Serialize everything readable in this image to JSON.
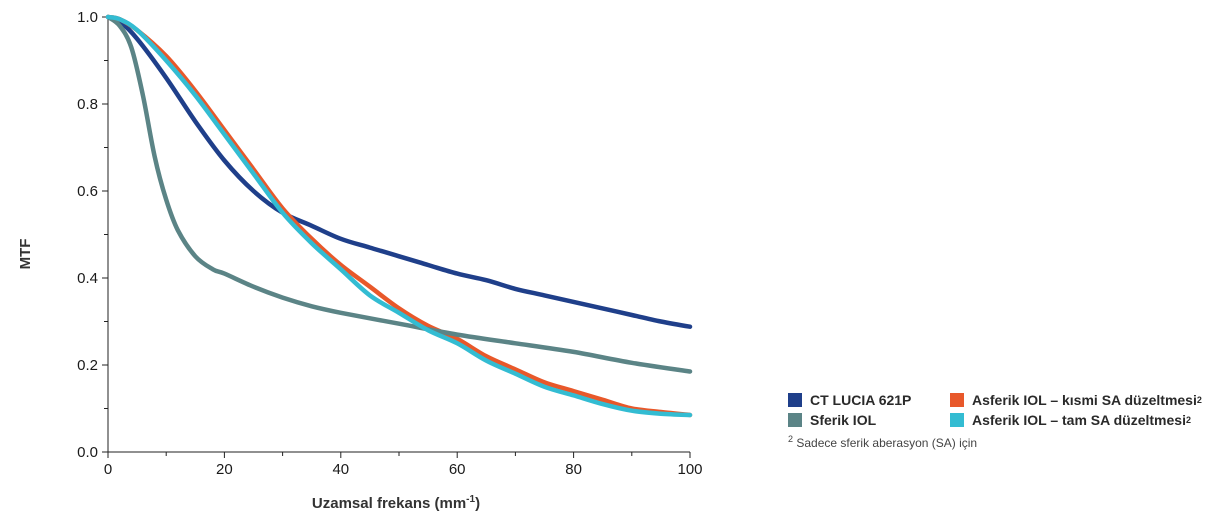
{
  "chart_data": {
    "type": "line",
    "xlabel": "Uzamsal frekans (mm",
    "xlabel_sup": "-1",
    "xlabel_suffix": ")",
    "ylabel": "MTF",
    "xlim": [
      0,
      100
    ],
    "ylim": [
      0,
      1
    ],
    "xticks": [
      0,
      20,
      40,
      60,
      80,
      100
    ],
    "yticks": [
      "0.0",
      "0.2",
      "0.4",
      "0.6",
      "0.8",
      "1.0"
    ],
    "series": [
      {
        "name": "CT LUCIA 621P",
        "color": "#1f3f8a",
        "x": [
          0,
          2,
          5,
          10,
          15,
          20,
          25,
          30,
          35,
          40,
          45,
          50,
          55,
          60,
          65,
          70,
          75,
          80,
          85,
          90,
          95,
          100
        ],
        "y": [
          1.0,
          0.99,
          0.95,
          0.86,
          0.76,
          0.67,
          0.6,
          0.55,
          0.52,
          0.49,
          0.47,
          0.45,
          0.43,
          0.41,
          0.395,
          0.375,
          0.36,
          0.345,
          0.33,
          0.315,
          0.3,
          0.288
        ]
      },
      {
        "name": "Asferik IOL – kısmi SA düzeltmesi",
        "color": "#e8582a",
        "x": [
          0,
          2,
          5,
          10,
          15,
          20,
          25,
          30,
          35,
          40,
          45,
          50,
          55,
          60,
          65,
          70,
          75,
          80,
          85,
          90,
          95,
          100
        ],
        "y": [
          1.0,
          0.995,
          0.97,
          0.91,
          0.83,
          0.74,
          0.65,
          0.56,
          0.49,
          0.43,
          0.38,
          0.33,
          0.29,
          0.26,
          0.22,
          0.19,
          0.16,
          0.14,
          0.12,
          0.1,
          0.092,
          0.085
        ]
      },
      {
        "name": "Sferik IOL",
        "color": "#5b8486",
        "x": [
          0,
          2,
          4,
          6,
          8,
          10,
          12,
          15,
          18,
          20,
          25,
          30,
          35,
          40,
          50,
          60,
          70,
          80,
          90,
          100
        ],
        "y": [
          1.0,
          0.98,
          0.93,
          0.82,
          0.68,
          0.58,
          0.51,
          0.45,
          0.42,
          0.41,
          0.38,
          0.355,
          0.335,
          0.32,
          0.295,
          0.27,
          0.25,
          0.23,
          0.205,
          0.185
        ]
      },
      {
        "name": "Asferik IOL – tam SA düzeltmesi",
        "color": "#33bcd2",
        "x": [
          0,
          2,
          5,
          10,
          15,
          20,
          25,
          30,
          35,
          40,
          45,
          50,
          55,
          60,
          65,
          70,
          75,
          80,
          85,
          90,
          95,
          100
        ],
        "y": [
          1.0,
          0.995,
          0.97,
          0.9,
          0.82,
          0.73,
          0.64,
          0.55,
          0.48,
          0.42,
          0.36,
          0.32,
          0.28,
          0.25,
          0.21,
          0.18,
          0.15,
          0.13,
          0.11,
          0.095,
          0.088,
          0.085
        ]
      }
    ],
    "legend": [
      {
        "label": "CT LUCIA 621P",
        "sup": "",
        "color": "#1f3f8a"
      },
      {
        "label": "Asferik IOL – kısmi SA düzeltmesi",
        "sup": "2",
        "color": "#e8582a"
      },
      {
        "label": "Sferik IOL",
        "sup": "",
        "color": "#5b8486"
      },
      {
        "label": "Asferik IOL – tam SA düzeltmesi",
        "sup": "2",
        "color": "#33bcd2"
      }
    ],
    "footnote_mark": "2",
    "footnote": "Sadece sferik aberasyon (SA) için"
  }
}
